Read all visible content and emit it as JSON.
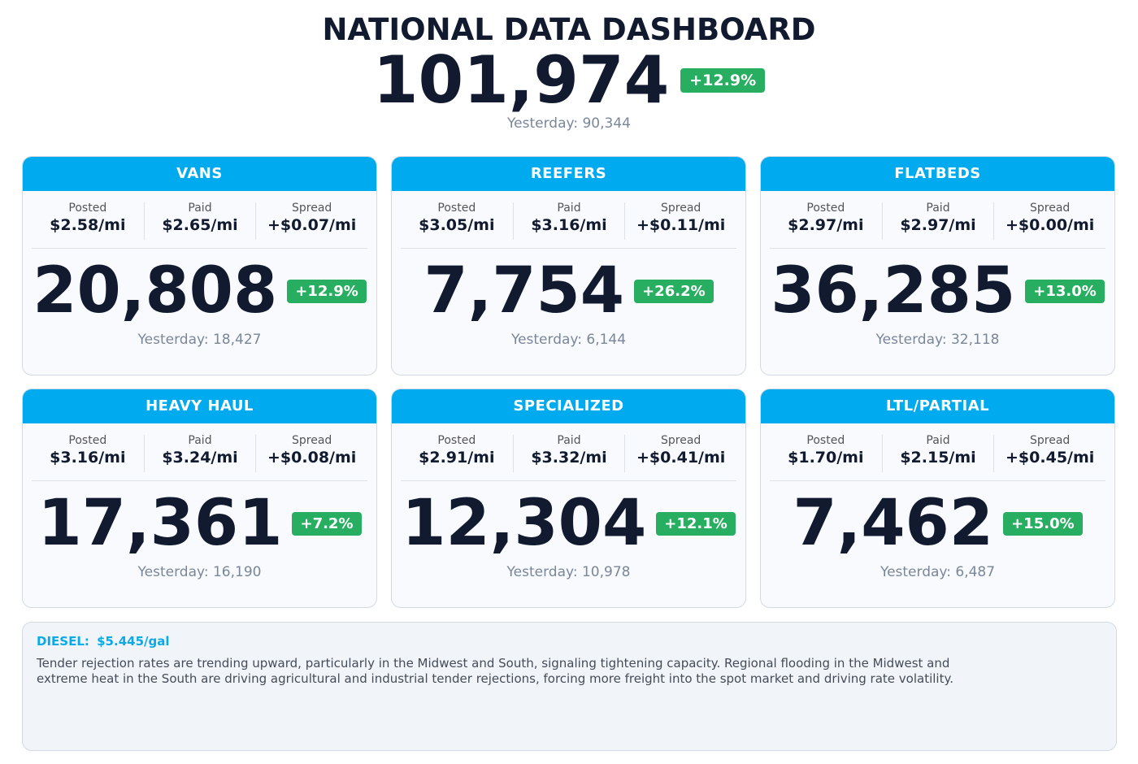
{
  "header": {
    "title": "NATIONAL DATA DASHBOARD",
    "total": "101,974",
    "change": "+12.9%",
    "yesterday": "Yesterday: 90,344"
  },
  "cards": [
    {
      "title": "VANS",
      "metrics": [
        {
          "label": "Posted",
          "value": "$2.58/mi"
        },
        {
          "label": "Paid",
          "value": "$2.65/mi"
        },
        {
          "label": "Spread",
          "value": "+$0.07/mi"
        }
      ],
      "count": "20,808",
      "change": "+12.9%",
      "yesterday": "Yesterday: 18,427"
    },
    {
      "title": "REEFERS",
      "metrics": [
        {
          "label": "Posted",
          "value": "$3.05/mi"
        },
        {
          "label": "Paid",
          "value": "$3.16/mi"
        },
        {
          "label": "Spread",
          "value": "+$0.11/mi"
        }
      ],
      "count": "7,754",
      "change": "+26.2%",
      "yesterday": "Yesterday: 6,144"
    },
    {
      "title": "FLATBEDS",
      "metrics": [
        {
          "label": "Posted",
          "value": "$2.97/mi"
        },
        {
          "label": "Paid",
          "value": "$2.97/mi"
        },
        {
          "label": "Spread",
          "value": "+$0.00/mi"
        }
      ],
      "count": "36,285",
      "change": "+13.0%",
      "yesterday": "Yesterday: 32,118"
    },
    {
      "title": "HEAVY HAUL",
      "metrics": [
        {
          "label": "Posted",
          "value": "$3.16/mi"
        },
        {
          "label": "Paid",
          "value": "$3.24/mi"
        },
        {
          "label": "Spread",
          "value": "+$0.08/mi"
        }
      ],
      "count": "17,361",
      "change": "+7.2%",
      "yesterday": "Yesterday: 16,190"
    },
    {
      "title": "SPECIALIZED",
      "metrics": [
        {
          "label": "Posted",
          "value": "$2.91/mi"
        },
        {
          "label": "Paid",
          "value": "$3.32/mi"
        },
        {
          "label": "Spread",
          "value": "+$0.41/mi"
        }
      ],
      "count": "12,304",
      "change": "+12.1%",
      "yesterday": "Yesterday: 10,978"
    },
    {
      "title": "LTL/PARTIAL",
      "metrics": [
        {
          "label": "Posted",
          "value": "$1.70/mi"
        },
        {
          "label": "Paid",
          "value": "$2.15/mi"
        },
        {
          "label": "Spread",
          "value": "+$0.45/mi"
        }
      ],
      "count": "7,462",
      "change": "+15.0%",
      "yesterday": "Yesterday: 6,487"
    }
  ],
  "footer": {
    "diesel_label": "DIESEL:",
    "diesel": "$5.445/gal",
    "note": "Tender rejection rates are trending upward, particularly in the Midwest and South, signaling tightening capacity. Regional flooding in the Midwest and extreme heat in the South are driving agricultural and industrial tender rejections, forcing more freight into the spot market and driving rate volatility."
  }
}
